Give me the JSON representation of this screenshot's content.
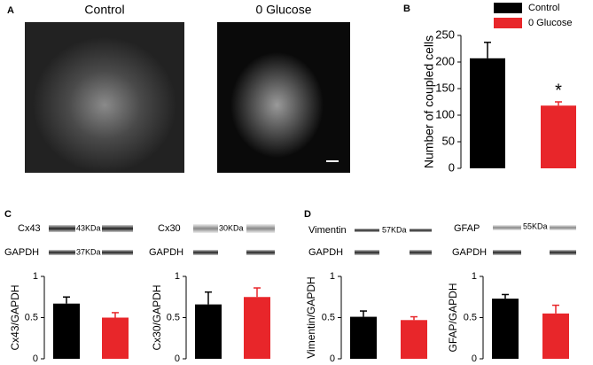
{
  "panel_labels": [
    "A",
    "B",
    "C",
    "D"
  ],
  "images": [
    {
      "title": "Control"
    },
    {
      "title": "0 Glucose"
    }
  ],
  "blots": [
    {
      "protein": "Cx43",
      "kda": "43KDa",
      "loading": "GAPDH",
      "loading_kda": "37KDa"
    },
    {
      "protein": "Cx30",
      "kda": "30KDa",
      "loading": "GAPDH"
    },
    {
      "protein": "Vimentin",
      "kda": "57KDa",
      "loading": "GAPDH"
    },
    {
      "protein": "GFAP",
      "kda": "55KDa",
      "loading": "GAPDH"
    }
  ],
  "chart_data": [
    {
      "type": "bar",
      "y_label": "Number of coupled cells",
      "annotation": "*",
      "series": [
        {
          "name": "Control",
          "color": "#000000",
          "values": [
            207
          ],
          "errors": [
            30
          ]
        },
        {
          "name": "0 Glucose",
          "color": "#e8262a",
          "values": [
            118
          ],
          "errors": [
            7
          ]
        }
      ],
      "ylim": [
        0,
        250
      ],
      "yticks": [
        0,
        50,
        100,
        150,
        200,
        250
      ]
    },
    {
      "type": "bar",
      "y_label": "Cx43/GAPDH",
      "series": [
        {
          "color": "#000000",
          "values": [
            0.67
          ],
          "errors": [
            0.08
          ]
        },
        {
          "color": "#e8262a",
          "values": [
            0.5
          ],
          "errors": [
            0.06
          ]
        }
      ],
      "ylim": [
        0,
        1
      ],
      "yticks": [
        0,
        0.5,
        1
      ]
    },
    {
      "type": "bar",
      "y_label": "Cx30/GAPDH",
      "series": [
        {
          "color": "#000000",
          "values": [
            0.66
          ],
          "errors": [
            0.15
          ]
        },
        {
          "color": "#e8262a",
          "values": [
            0.75
          ],
          "errors": [
            0.11
          ]
        }
      ],
      "ylim": [
        0,
        1
      ],
      "yticks": [
        0,
        0.5,
        1
      ]
    },
    {
      "type": "bar",
      "y_label": "Vimentin/GAPDH",
      "series": [
        {
          "color": "#000000",
          "values": [
            0.51
          ],
          "errors": [
            0.07
          ]
        },
        {
          "color": "#e8262a",
          "values": [
            0.47
          ],
          "errors": [
            0.04
          ]
        }
      ],
      "ylim": [
        0,
        1
      ],
      "yticks": [
        0,
        0.5,
        1
      ]
    },
    {
      "type": "bar",
      "y_label": "GFAP/GAPDH",
      "series": [
        {
          "color": "#000000",
          "values": [
            0.73
          ],
          "errors": [
            0.05
          ]
        },
        {
          "color": "#e8262a",
          "values": [
            0.55
          ],
          "errors": [
            0.1
          ]
        }
      ],
      "ylim": [
        0,
        1
      ],
      "yticks": [
        0,
        0.5,
        1
      ]
    }
  ]
}
